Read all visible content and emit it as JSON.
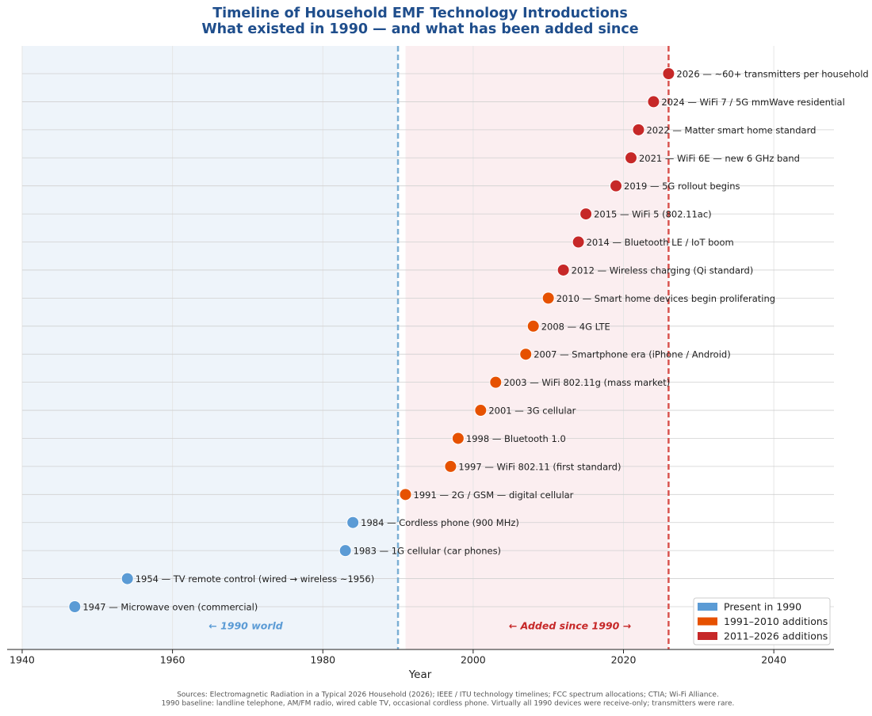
{
  "chart_data": {
    "type": "scatter",
    "title": "Timeline of Household EMF Technology Introductions",
    "subtitle": "What existed in 1990 — and what has been added since",
    "x_label": "Year",
    "xlim": [
      1938,
      2048
    ],
    "xticks": [
      1940,
      1960,
      1980,
      2000,
      2020,
      2040
    ],
    "grid": true,
    "legend": "lower right",
    "regions": [
      {
        "from": 1940,
        "to": 1990,
        "color": "#eef4fa"
      },
      {
        "from": 1991,
        "to": 2026,
        "color": "#fbeef0"
      }
    ],
    "vlines": [
      {
        "x": 1990,
        "color": "#7bafd4"
      },
      {
        "x": 2026,
        "color": "#d9534f"
      }
    ],
    "annotations": [
      {
        "text": "← 1990 world",
        "color": "#5b9bd5"
      },
      {
        "text": "← Added since 1990 →",
        "color": "#c62828"
      }
    ],
    "series": [
      {
        "name": "Present in 1990",
        "color": "#5b9bd5",
        "values": [
          1947,
          1954,
          1983,
          1984
        ],
        "labels": [
          "1947  —  Microwave oven (commercial)",
          "1954  —  TV remote control (wired → wireless ~1956)",
          "1983  —  1G cellular (car phones)",
          "1984  —  Cordless phone (900 MHz)"
        ]
      },
      {
        "name": "1991–2010 additions",
        "color": "#e65100",
        "values": [
          1991,
          1997,
          1998,
          2001,
          2003,
          2007,
          2008,
          2010
        ],
        "labels": [
          "1991  —  2G / GSM — digital cellular",
          "1997  —  WiFi 802.11 (first standard)",
          "1998  —  Bluetooth 1.0",
          "2001  —  3G cellular",
          "2003  —  WiFi 802.11g (mass market)",
          "2007  —  Smartphone era (iPhone / Android)",
          "2008  —  4G LTE",
          "2010  —  Smart home devices begin proliferating"
        ]
      },
      {
        "name": "2011–2026 additions",
        "color": "#c62828",
        "values": [
          2012,
          2014,
          2015,
          2019,
          2021,
          2022,
          2024,
          2026
        ],
        "labels": [
          "2012  —  Wireless charging (Qi standard)",
          "2014  —  Bluetooth LE / IoT boom",
          "2015  —  WiFi 5 (802.11ac)",
          "2019  —  5G rollout begins",
          "2021  —  WiFi 6E — new 6 GHz band",
          "2022  —  Matter smart home standard",
          "2024  —  WiFi 7 / 5G mmWave residential",
          "2026  —  ~60+ transmitters per household"
        ]
      }
    ],
    "notes": [
      "Sources: Electromagnetic Radiation in a Typical 2026 Household (2026); IEEE / ITU technology timelines; FCC spectrum allocations; CTIA; Wi-Fi Alliance.",
      "1990 baseline: landline telephone, AM/FM radio, wired cable TV, occasional cordless phone. Virtually all 1990 devices were receive-only; transmitters were rare."
    ]
  }
}
